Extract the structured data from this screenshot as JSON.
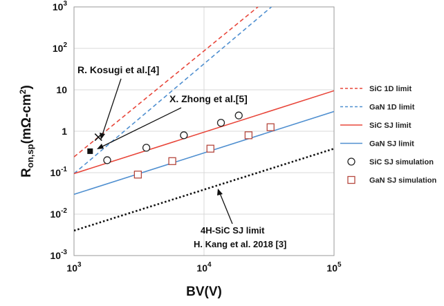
{
  "chart_data": {
    "type": "line",
    "xlabel": "BV(V)",
    "ylabel_main": "R",
    "ylabel_sub": "on,sp",
    "ylabel_unit": "(mΩ-cm",
    "ylabel_unit_exp": "2",
    "ylabel_unit_close": ")",
    "x_scale": "log",
    "y_scale": "log",
    "xlim": [
      1000,
      100000
    ],
    "ylim": [
      0.001,
      1000
    ],
    "grid": true,
    "legend_placement": "right",
    "x_ticks": [
      {
        "value": 1000,
        "base": "10",
        "exp": "3"
      },
      {
        "value": 10000,
        "base": "10",
        "exp": "4"
      },
      {
        "value": 100000,
        "base": "10",
        "exp": "5"
      }
    ],
    "y_ticks": [
      {
        "value": 0.001,
        "base": "10",
        "exp": "-3"
      },
      {
        "value": 0.01,
        "base": "10",
        "exp": "-2"
      },
      {
        "value": 0.1,
        "base": "10",
        "exp": "-1"
      },
      {
        "value": 1,
        "base": "1",
        "exp": ""
      },
      {
        "value": 10,
        "base": "10",
        "exp": ""
      },
      {
        "value": 100,
        "base": "10",
        "exp": "2"
      },
      {
        "value": 1000,
        "base": "10",
        "exp": "3"
      }
    ],
    "series": [
      {
        "name": "SiC 1D limit",
        "kind": "line",
        "style": "dashed",
        "color": "#e8463a",
        "x": [
          1000,
          26000
        ],
        "y": [
          0.24,
          1000
        ]
      },
      {
        "name": "GaN 1D limit",
        "kind": "line",
        "style": "dashed",
        "color": "#4f8fd0",
        "x": [
          1000,
          33000
        ],
        "y": [
          0.095,
          1000
        ]
      },
      {
        "name": "SiC SJ limit",
        "kind": "line",
        "style": "solid",
        "color": "#e8463a",
        "x": [
          1000,
          100000
        ],
        "y": [
          0.095,
          9.5
        ]
      },
      {
        "name": "GaN SJ limit",
        "kind": "line",
        "style": "solid",
        "color": "#4f8fd0",
        "x": [
          1000,
          100000
        ],
        "y": [
          0.03,
          3.0
        ]
      },
      {
        "name": "SiC SJ simulation",
        "kind": "marker",
        "marker": "circle",
        "color": "#222222",
        "x": [
          1800,
          3600,
          7000,
          13500,
          18500
        ],
        "y": [
          0.2,
          0.4,
          0.8,
          1.6,
          2.4
        ]
      },
      {
        "name": "GaN SJ simulation",
        "kind": "marker",
        "marker": "square",
        "color": "#b5473d",
        "x": [
          3100,
          5700,
          11200,
          22000,
          32500
        ],
        "y": [
          0.09,
          0.19,
          0.38,
          0.8,
          1.25
        ]
      },
      {
        "name": "",
        "kind": "line",
        "style": "dotted",
        "color": "#111111",
        "x": [
          1000,
          100000
        ],
        "y": [
          0.004,
          0.38
        ]
      }
    ],
    "annotations": [
      {
        "id": "kosugi",
        "text": "R. Kosugi et al.[4]",
        "point": {
          "x": 1540,
          "y": 0.72
        },
        "marker": "x"
      },
      {
        "id": "zhong",
        "text": "X. Zhong et al.[5]",
        "point": {
          "x": 1330,
          "y": 0.33
        },
        "marker": "filled-square"
      },
      {
        "id": "kang1",
        "text": "4H-SiC SJ limit"
      },
      {
        "id": "kang2",
        "text": "H. Kang et al. 2018 [3]"
      }
    ]
  }
}
